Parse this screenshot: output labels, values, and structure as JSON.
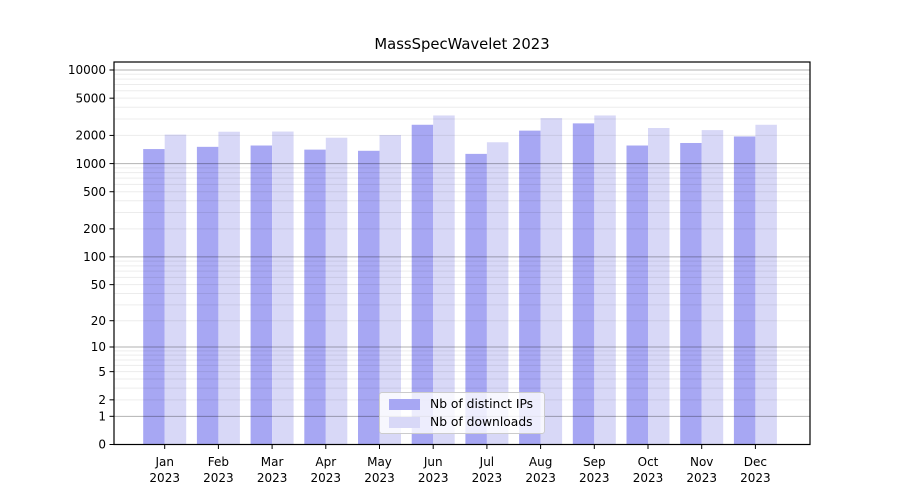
{
  "figure": {
    "title": "MassSpecWavelet 2023",
    "background_color": "#ffffff",
    "spine_color": "#000000",
    "major_grid_color": "rgba(0,0,0,0.30)",
    "minor_grid_color": "rgba(0,0,0,0.075)"
  },
  "legend": {
    "items": [
      {
        "label": "Nb of distinct IPs",
        "color": "#a7a7f3"
      },
      {
        "label": "Nb of downloads",
        "color": "#d8d8f7"
      }
    ]
  },
  "chart_data": {
    "type": "bar",
    "title": "MassSpecWavelet 2023",
    "categories": [
      {
        "month": "Jan",
        "year": "2023"
      },
      {
        "month": "Feb",
        "year": "2023"
      },
      {
        "month": "Mar",
        "year": "2023"
      },
      {
        "month": "Apr",
        "year": "2023"
      },
      {
        "month": "May",
        "year": "2023"
      },
      {
        "month": "Jun",
        "year": "2023"
      },
      {
        "month": "Jul",
        "year": "2023"
      },
      {
        "month": "Aug",
        "year": "2023"
      },
      {
        "month": "Sep",
        "year": "2023"
      },
      {
        "month": "Oct",
        "year": "2023"
      },
      {
        "month": "Nov",
        "year": "2023"
      },
      {
        "month": "Dec",
        "year": "2023"
      }
    ],
    "series": [
      {
        "name": "Nb of distinct IPs",
        "color": "#a7a7f3",
        "values": [
          1430,
          1510,
          1560,
          1410,
          1370,
          2600,
          1270,
          2250,
          2690,
          1560,
          1660,
          1950
        ]
      },
      {
        "name": "Nb of downloads",
        "color": "#d8d8f7",
        "values": [
          2040,
          2190,
          2200,
          1890,
          2020,
          3270,
          1690,
          3060,
          3270,
          2400,
          2280,
          2600
        ]
      }
    ],
    "xlabel": "",
    "ylabel": "",
    "yscale": "log1p",
    "yticks": [
      0,
      1,
      2,
      5,
      10,
      20,
      50,
      100,
      200,
      500,
      1000,
      2000,
      5000,
      10000
    ],
    "ylim": [
      0,
      12200
    ],
    "grid": "horizontal",
    "legend_position": "lower-center"
  }
}
